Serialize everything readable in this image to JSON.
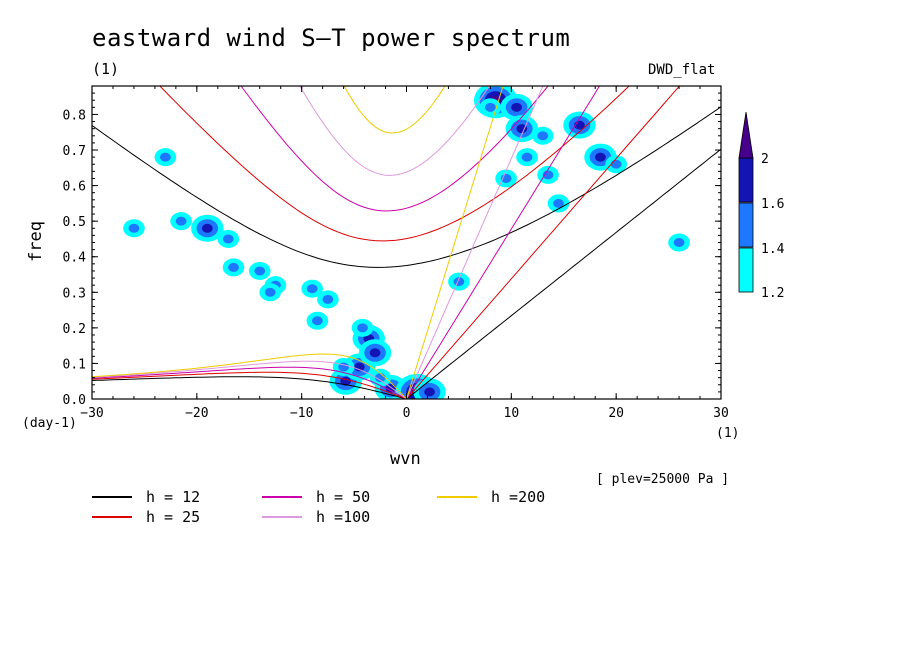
{
  "title": "eastward wind S–T power spectrum",
  "subtitle": "(1)",
  "model_label": "DWD_flat",
  "xlabel": "wvn",
  "ylabel": "freq",
  "y_unit": "(day-1)",
  "x_unit": "(1)",
  "plev_label": "[ plev=25000 Pa ]",
  "chart_data": {
    "type": "heatmap",
    "xlim": [
      -30,
      30
    ],
    "ylim": [
      0,
      0.88
    ],
    "x_ticks": [
      -30,
      -20,
      -10,
      0,
      10,
      20,
      30
    ],
    "y_ticks": [
      0,
      0.1,
      0.2,
      0.3,
      0.4,
      0.5,
      0.6,
      0.7,
      0.8
    ],
    "colorbar": {
      "levels": [
        1.2,
        1.4,
        1.6,
        2
      ],
      "colors": [
        "#00ffff",
        "#1e78ff",
        "#1414b4",
        "#46008c"
      ],
      "extend": "max"
    },
    "dispersion_curves": [
      {
        "label": "h = 12",
        "h": 12,
        "color": "#000000"
      },
      {
        "label": "h = 25",
        "h": 25,
        "color": "#dd0000"
      },
      {
        "label": "h = 50",
        "h": 50,
        "color": "#cc00aa"
      },
      {
        "label": "h =100",
        "h": 100,
        "color": "#dd99dd"
      },
      {
        "label": "h =200",
        "h": 200,
        "color": "#eecc00"
      }
    ],
    "blobs": [
      {
        "x": -5.8,
        "y": 0.05,
        "level": 2
      },
      {
        "x": -4.5,
        "y": 0.09,
        "level": 2
      },
      {
        "x": -3.6,
        "y": 0.17,
        "level": 2
      },
      {
        "x": -3.0,
        "y": 0.13,
        "level": 2
      },
      {
        "x": -4.2,
        "y": 0.2,
        "level": 1
      },
      {
        "x": -6.0,
        "y": 0.09,
        "level": 1
      },
      {
        "x": -1.5,
        "y": 0.03,
        "level": 2
      },
      {
        "x": 1.0,
        "y": 0.02,
        "level": 3
      },
      {
        "x": 2.2,
        "y": 0.02,
        "level": 2
      },
      {
        "x": -2.5,
        "y": 0.06,
        "level": 1
      },
      {
        "x": 8.5,
        "y": 0.84,
        "level": 3
      },
      {
        "x": 10.5,
        "y": 0.82,
        "level": 2
      },
      {
        "x": 11.0,
        "y": 0.76,
        "level": 2
      },
      {
        "x": 8.0,
        "y": 0.82,
        "level": 1
      },
      {
        "x": 16.5,
        "y": 0.77,
        "level": 2
      },
      {
        "x": 18.5,
        "y": 0.68,
        "level": 2
      },
      {
        "x": 20.0,
        "y": 0.66,
        "level": 1
      },
      {
        "x": 14.5,
        "y": 0.55,
        "level": 1
      },
      {
        "x": -19.0,
        "y": 0.48,
        "level": 2
      },
      {
        "x": -21.5,
        "y": 0.5,
        "level": 1
      },
      {
        "x": -16.5,
        "y": 0.37,
        "level": 1
      },
      {
        "x": -12.5,
        "y": 0.32,
        "level": 1
      },
      {
        "x": -7.5,
        "y": 0.28,
        "level": 1
      },
      {
        "x": -8.5,
        "y": 0.22,
        "level": 1
      },
      {
        "x": -13.0,
        "y": 0.3,
        "level": 1
      },
      {
        "x": -14.0,
        "y": 0.36,
        "level": 1
      },
      {
        "x": 5.0,
        "y": 0.33,
        "level": 1
      },
      {
        "x": 11.5,
        "y": 0.68,
        "level": 1
      },
      {
        "x": 13.0,
        "y": 0.74,
        "level": 1
      },
      {
        "x": -23.0,
        "y": 0.68,
        "level": 1
      },
      {
        "x": -26.0,
        "y": 0.48,
        "level": 1
      },
      {
        "x": 26.0,
        "y": 0.44,
        "level": 1
      },
      {
        "x": 13.5,
        "y": 0.63,
        "level": 1
      },
      {
        "x": 9.5,
        "y": 0.62,
        "level": 1
      },
      {
        "x": -17.0,
        "y": 0.45,
        "level": 1
      },
      {
        "x": -9.0,
        "y": 0.31,
        "level": 1
      }
    ]
  }
}
